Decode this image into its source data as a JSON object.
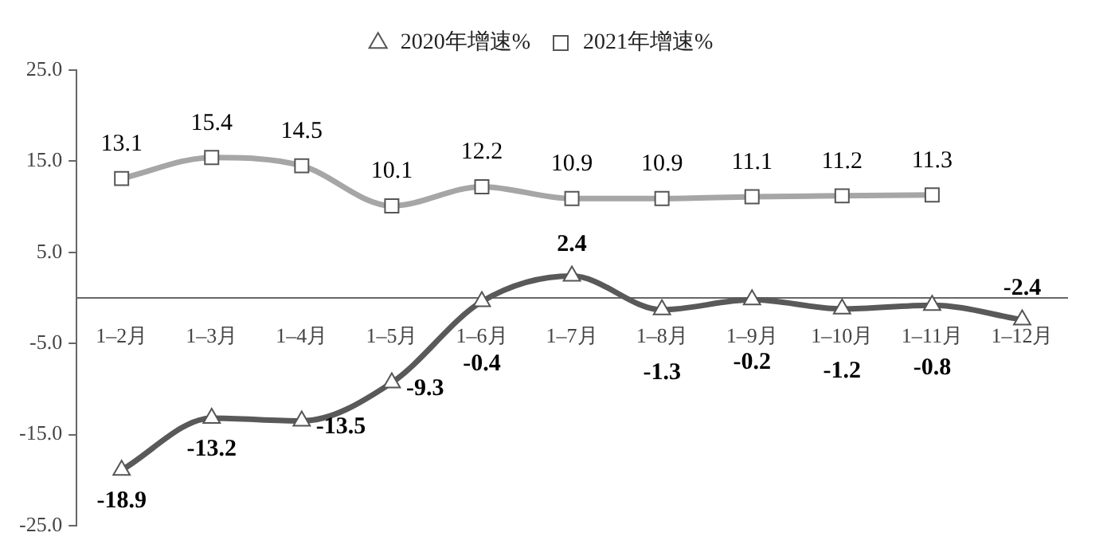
{
  "chart_data": {
    "type": "line",
    "categories": [
      "1–2月",
      "1–3月",
      "1–4月",
      "1–5月",
      "1–6月",
      "1–7月",
      "1–8月",
      "1–9月",
      "1–10月",
      "1–11月",
      "1–12月"
    ],
    "series": [
      {
        "name": "2020年增速%",
        "color": "#595959",
        "marker": "triangle",
        "values": [
          -18.9,
          -13.2,
          -13.5,
          -9.3,
          -0.4,
          2.4,
          -1.3,
          -0.2,
          -1.2,
          -0.8,
          -2.4
        ]
      },
      {
        "name": "2021年增速%",
        "color": "#a6a6a6",
        "marker": "square",
        "values": [
          13.1,
          15.4,
          14.5,
          10.1,
          12.2,
          10.9,
          10.9,
          11.1,
          11.2,
          11.3,
          null
        ]
      }
    ],
    "ylim": [
      -25,
      25
    ],
    "yticks": [
      {
        "value": -25,
        "label": "-25.0"
      },
      {
        "value": -15,
        "label": "-15.0"
      },
      {
        "value": -5,
        "label": "-5.0"
      },
      {
        "value": 5,
        "label": "5.0"
      },
      {
        "value": 15,
        "label": "15.0"
      },
      {
        "value": 25,
        "label": "25.0"
      }
    ],
    "grid": false,
    "legend": "top",
    "data_labels": true
  }
}
